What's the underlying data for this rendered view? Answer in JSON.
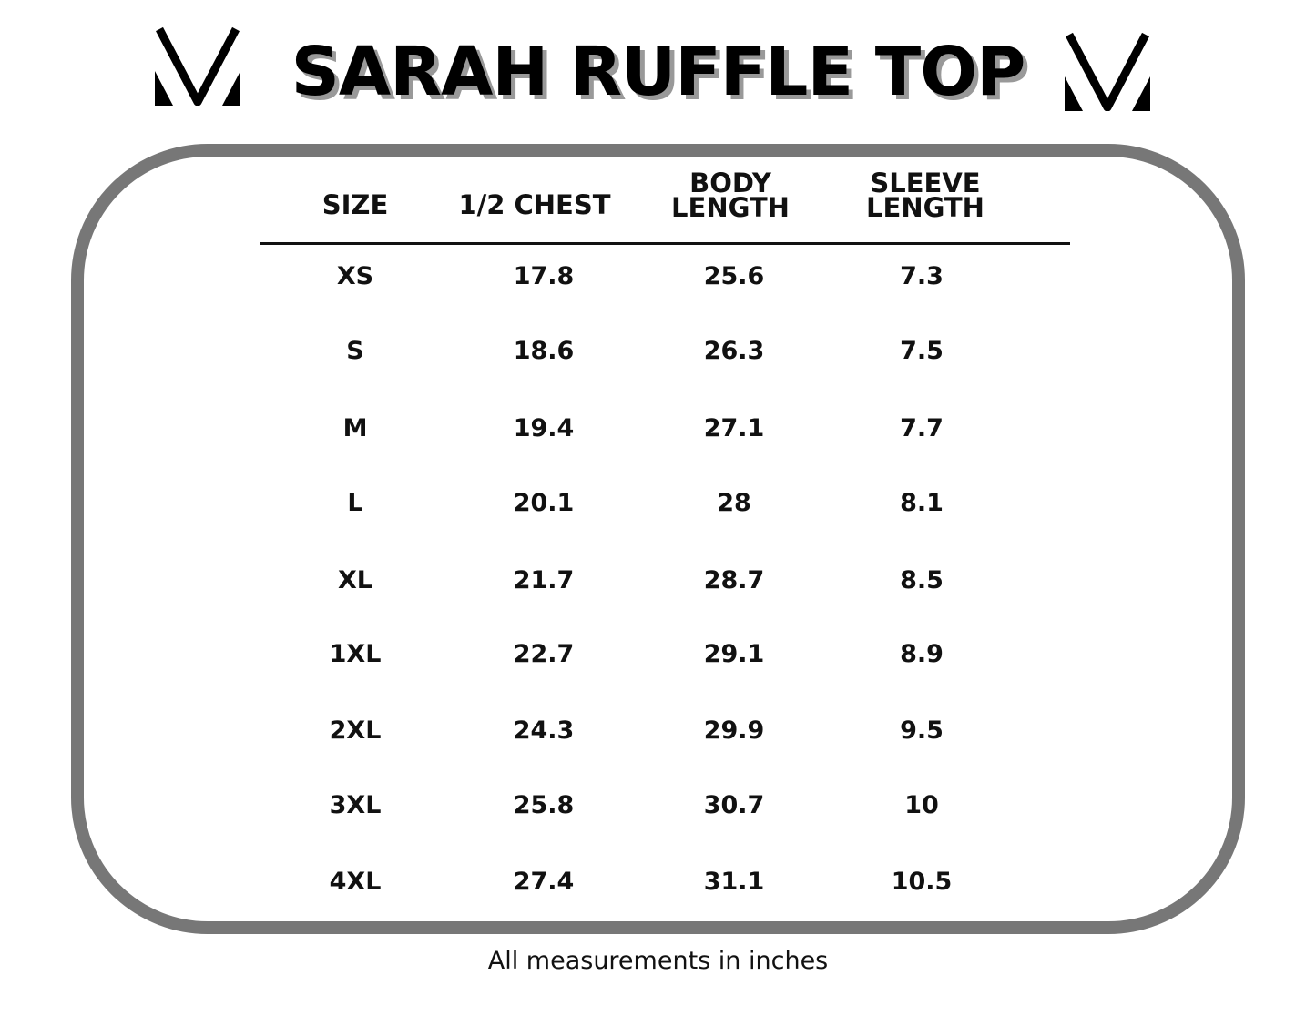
{
  "title": "SARAH RUFFLE TOP",
  "logo_icon": "v-logo-icon",
  "table": {
    "headers": [
      "SIZE",
      "1/2 CHEST",
      "BODY\nLENGTH",
      "SLEEVE\nLENGTH"
    ],
    "header_lines": [
      [
        "SIZE"
      ],
      [
        "1/2 CHEST"
      ],
      [
        "BODY",
        "LENGTH"
      ],
      [
        "SLEEVE",
        "LENGTH"
      ]
    ],
    "rows": [
      [
        "XS",
        "17.8",
        "25.6",
        "7.3"
      ],
      [
        "S",
        "18.6",
        "26.3",
        "7.5"
      ],
      [
        "M",
        "19.4",
        "27.1",
        "7.7"
      ],
      [
        "L",
        "20.1",
        "28",
        "8.1"
      ],
      [
        "XL",
        "21.7",
        "28.7",
        "8.5"
      ],
      [
        "1XL",
        "22.7",
        "29.1",
        "8.9"
      ],
      [
        "2XL",
        "24.3",
        "29.9",
        "9.5"
      ],
      [
        "3XL",
        "25.8",
        "30.7",
        "10"
      ],
      [
        "4XL",
        "27.4",
        "31.1",
        "10.5"
      ]
    ]
  },
  "footnote": "All measurements in inches",
  "colors": {
    "border": "#777777",
    "text": "#000000",
    "title_shadow": "#999999"
  }
}
